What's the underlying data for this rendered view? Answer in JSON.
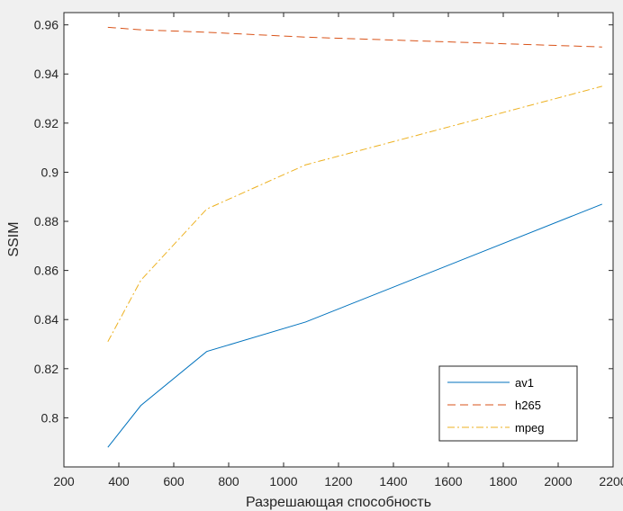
{
  "chart_data": {
    "type": "line",
    "xlabel": "Разрешающая способность",
    "ylabel": "SSIM",
    "xlim": [
      200,
      2200
    ],
    "ylim": [
      0.78,
      0.965
    ],
    "xticks": [
      200,
      400,
      600,
      800,
      1000,
      1200,
      1400,
      1600,
      1800,
      2000,
      2200
    ],
    "yticks": [
      0.8,
      0.82,
      0.84,
      0.86,
      0.88,
      0.9,
      0.92,
      0.94,
      0.96
    ],
    "ytick_labels": [
      "0.8",
      "0.82",
      "0.84",
      "0.86",
      "0.88",
      "0.9",
      "0.92",
      "0.94",
      "0.96"
    ],
    "grid": false,
    "legend_position": "bottom-right",
    "series": [
      {
        "name": "av1",
        "color": "#0072BD",
        "dash": "solid",
        "x": [
          360,
          480,
          720,
          1080,
          2160
        ],
        "y": [
          0.788,
          0.805,
          0.827,
          0.839,
          0.887
        ]
      },
      {
        "name": "h265",
        "color": "#D95319",
        "dash": "dashed",
        "x": [
          360,
          480,
          720,
          1080,
          2160
        ],
        "y": [
          0.959,
          0.958,
          0.957,
          0.955,
          0.951
        ]
      },
      {
        "name": "mpeg",
        "color": "#EDB120",
        "dash": "dashdot",
        "x": [
          360,
          480,
          720,
          1080,
          2160
        ],
        "y": [
          0.831,
          0.856,
          0.885,
          0.903,
          0.935
        ]
      }
    ]
  }
}
